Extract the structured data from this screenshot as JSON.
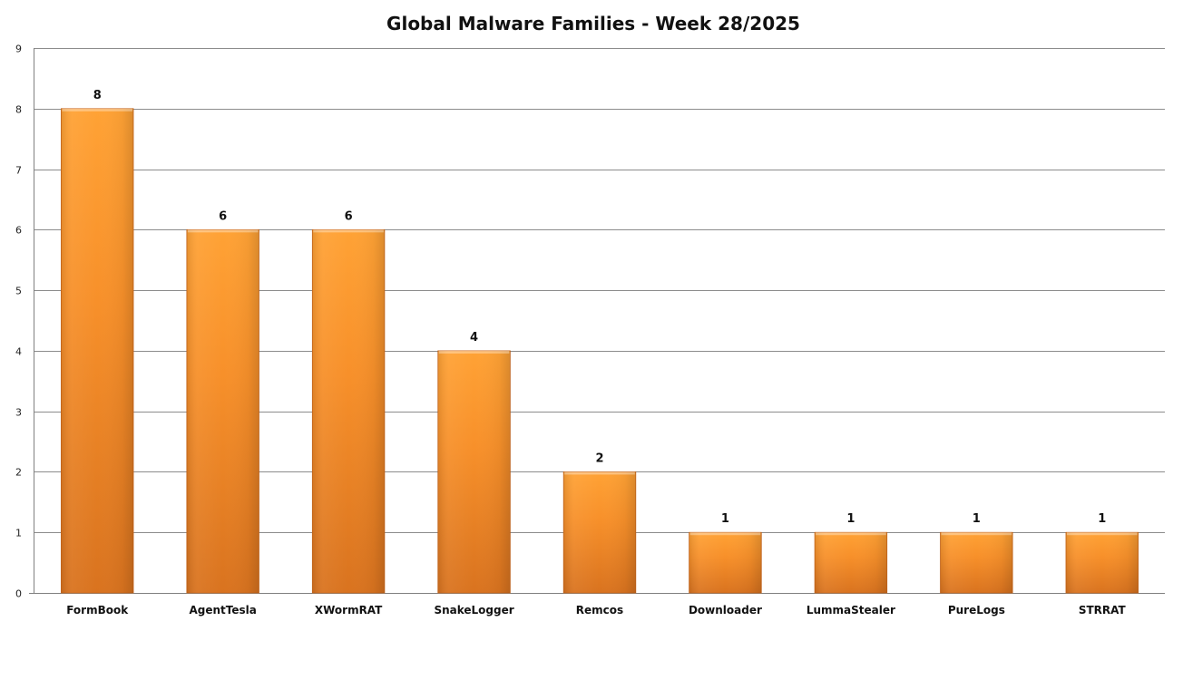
{
  "chart_data": {
    "type": "bar",
    "title": "Global Malware Families - Week 28/2025",
    "xlabel": "",
    "ylabel": "",
    "categories": [
      "FormBook",
      "AgentTesla",
      "XWormRAT",
      "SnakeLogger",
      "Remcos",
      "Downloader",
      "LummaStealer",
      "PureLogs",
      "STRRAT"
    ],
    "values": [
      8,
      6,
      6,
      4,
      2,
      1,
      1,
      1,
      1
    ],
    "ylim": [
      0,
      9
    ],
    "yticks": [
      0,
      1,
      2,
      3,
      4,
      5,
      6,
      7,
      8,
      9
    ],
    "grid": true,
    "legend": "none",
    "data_labels": true
  },
  "colors": {
    "bar_top": "#ffa235",
    "bar_mid": "#f7902a",
    "bar_bottom": "#d9731f",
    "bar_edge": "#c9661a"
  }
}
